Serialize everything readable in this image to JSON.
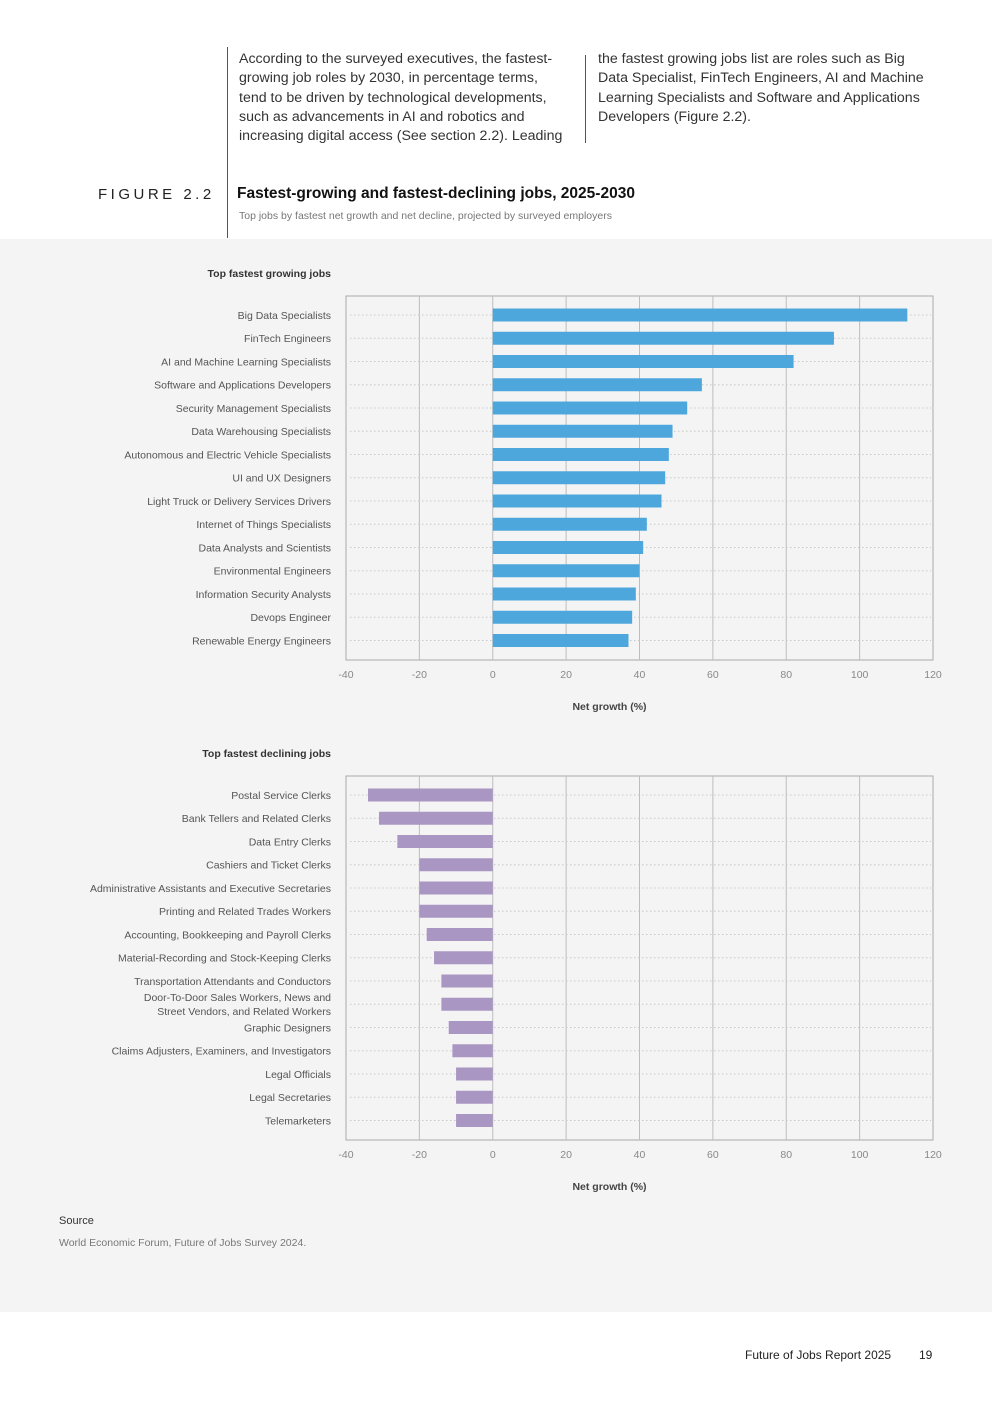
{
  "intro": {
    "col1": "According to the surveyed executives, the fastest-growing job roles by 2030, in percentage terms, tend to be driven by technological developments, such as advancements in AI and robotics and increasing digital access (See section 2.2). Leading",
    "col2": "the fastest growing jobs list are roles such as Big Data Specialist, FinTech Engineers, AI and Machine Learning Specialists and Software and Applications Developers (Figure 2.2)."
  },
  "figure": {
    "label": "FIGURE 2.2",
    "title": "Fastest-growing and fastest-declining jobs, 2025-2030",
    "subtitle": "Top jobs by fastest net growth and net decline, projected by surveyed employers"
  },
  "chart_data": [
    {
      "type": "bar",
      "orientation": "horizontal",
      "title": "Top fastest growing jobs",
      "xlabel": "Net growth (%)",
      "xlim": [
        -40,
        120
      ],
      "xticks": [
        "-40",
        "-20",
        "0",
        "20",
        "40",
        "60",
        "80",
        "100",
        "120"
      ],
      "grid": true,
      "color": "#4ea7dc",
      "categories": [
        "Big Data Specialists",
        "FinTech Engineers",
        "AI and Machine Learning Specialists",
        "Software and Applications Developers",
        "Security Management Specialists",
        "Data Warehousing Specialists",
        "Autonomous and Electric Vehicle Specialists",
        "UI and UX Designers",
        "Light Truck or Delivery Services Drivers",
        "Internet of Things Specialists",
        "Data Analysts and Scientists",
        "Environmental Engineers",
        "Information Security Analysts",
        "Devops Engineer",
        "Renewable Energy Engineers"
      ],
      "values": [
        113,
        93,
        82,
        57,
        53,
        49,
        48,
        47,
        46,
        42,
        41,
        40,
        39,
        38,
        37
      ]
    },
    {
      "type": "bar",
      "orientation": "horizontal",
      "title": "Top fastest declining jobs",
      "xlabel": "Net growth (%)",
      "xlim": [
        -40,
        120
      ],
      "xticks": [
        "-40",
        "-20",
        "0",
        "20",
        "40",
        "60",
        "80",
        "100",
        "120"
      ],
      "grid": true,
      "color": "#a996c2",
      "categories": [
        "Postal Service Clerks",
        "Bank Tellers and Related Clerks",
        "Data Entry Clerks",
        "Cashiers and Ticket Clerks",
        "Administrative Assistants and Executive Secretaries",
        "Printing and Related Trades Workers",
        "Accounting, Bookkeeping and Payroll Clerks",
        "Material-Recording and Stock-Keeping Clerks",
        "Transportation Attendants and Conductors",
        "Door-To-Door Sales Workers, News and Street Vendors, and Related Workers",
        "Graphic Designers",
        "Claims Adjusters, Examiners, and Investigators",
        "Legal Officials",
        "Legal Secretaries",
        "Telemarketers"
      ],
      "category_lines": [
        [
          "Postal Service Clerks"
        ],
        [
          "Bank Tellers and Related Clerks"
        ],
        [
          "Data Entry Clerks"
        ],
        [
          "Cashiers and Ticket Clerks"
        ],
        [
          "Administrative Assistants and Executive Secretaries"
        ],
        [
          "Printing and Related Trades Workers"
        ],
        [
          "Accounting, Bookkeeping and Payroll Clerks"
        ],
        [
          "Material-Recording and Stock-Keeping Clerks"
        ],
        [
          "Transportation Attendants and Conductors"
        ],
        [
          "Door-To-Door Sales Workers, News and",
          "Street Vendors, and Related Workers"
        ],
        [
          "Graphic Designers"
        ],
        [
          "Claims Adjusters, Examiners, and Investigators"
        ],
        [
          "Legal Officials"
        ],
        [
          "Legal Secretaries"
        ],
        [
          "Telemarketers"
        ]
      ],
      "values": [
        -34,
        -31,
        -26,
        -20,
        -20,
        -20,
        -18,
        -16,
        -14,
        -14,
        -12,
        -11,
        -10,
        -10,
        -10
      ]
    }
  ],
  "source": {
    "label": "Source",
    "text": "World Economic Forum, Future of Jobs Survey 2024."
  },
  "footer": {
    "title": "Future of Jobs Report 2025",
    "page": "19"
  }
}
